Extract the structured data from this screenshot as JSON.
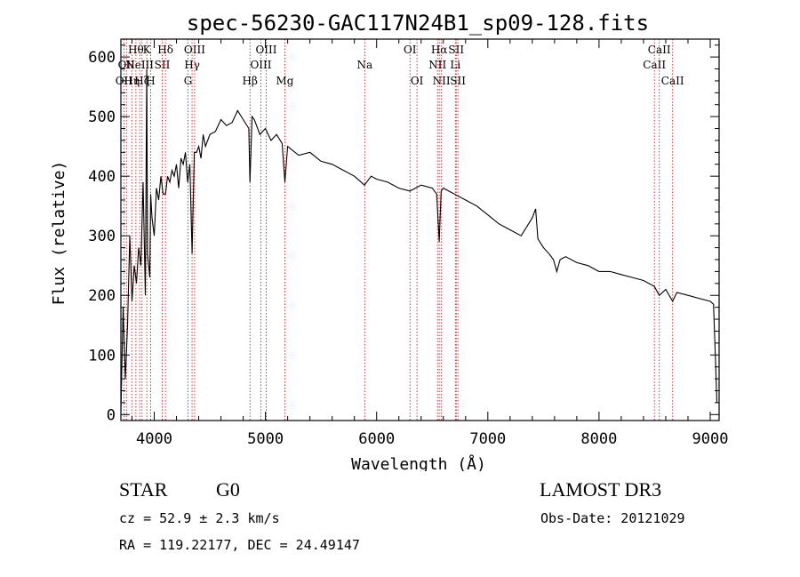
{
  "chart_data": {
    "type": "line",
    "title": "spec-56230-GAC117N24B1_sp09-128.fits",
    "xlabel": "Wavelength (Å)",
    "ylabel": "Flux (relative)",
    "xlim": [
      3700,
      9080
    ],
    "ylim": [
      -10,
      630
    ],
    "xticks": [
      4000,
      5000,
      6000,
      7000,
      8000,
      9000
    ],
    "yticks": [
      0,
      100,
      200,
      300,
      400,
      500,
      600
    ],
    "grid": false,
    "series": [
      {
        "name": "flux",
        "x": [
          3700,
          3720,
          3740,
          3760,
          3780,
          3800,
          3820,
          3840,
          3860,
          3880,
          3900,
          3920,
          3933,
          3940,
          3960,
          3968,
          3980,
          4000,
          4020,
          4040,
          4060,
          4080,
          4101,
          4120,
          4140,
          4160,
          4180,
          4200,
          4220,
          4240,
          4260,
          4280,
          4300,
          4320,
          4340,
          4360,
          4380,
          4400,
          4420,
          4440,
          4460,
          4480,
          4500,
          4550,
          4600,
          4650,
          4700,
          4750,
          4800,
          4850,
          4861,
          4880,
          4900,
          4950,
          5000,
          5050,
          5100,
          5150,
          5175,
          5200,
          5300,
          5400,
          5500,
          5600,
          5700,
          5800,
          5890,
          5950,
          6000,
          6100,
          6200,
          6300,
          6400,
          6500,
          6540,
          6563,
          6580,
          6600,
          6700,
          6800,
          6900,
          7000,
          7100,
          7200,
          7300,
          7400,
          7430,
          7450,
          7500,
          7550,
          7590,
          7620,
          7650,
          7700,
          7800,
          7900,
          8000,
          8100,
          8200,
          8300,
          8400,
          8498,
          8542,
          8600,
          8662,
          8700,
          8800,
          8900,
          9000,
          9030,
          9050,
          9060
        ],
        "values": [
          5,
          180,
          60,
          150,
          300,
          190,
          250,
          220,
          280,
          250,
          390,
          200,
          580,
          270,
          230,
          370,
          330,
          300,
          380,
          360,
          400,
          370,
          370,
          400,
          390,
          410,
          400,
          420,
          380,
          430,
          420,
          440,
          390,
          420,
          270,
          440,
          440,
          450,
          430,
          470,
          450,
          460,
          470,
          475,
          495,
          485,
          490,
          510,
          495,
          480,
          390,
          500,
          495,
          470,
          480,
          460,
          470,
          455,
          390,
          450,
          435,
          440,
          425,
          420,
          410,
          400,
          385,
          400,
          395,
          390,
          380,
          375,
          385,
          380,
          370,
          290,
          375,
          380,
          370,
          360,
          350,
          335,
          320,
          310,
          300,
          330,
          345,
          295,
          280,
          270,
          260,
          240,
          260,
          265,
          255,
          250,
          240,
          240,
          235,
          230,
          225,
          215,
          200,
          210,
          190,
          205,
          200,
          195,
          190,
          185,
          80,
          20
        ]
      }
    ],
    "line_annotations": [
      {
        "wavelength": 3727,
        "label": "OII",
        "row": 2
      },
      {
        "wavelength": 3750,
        "label": "OII",
        "row": 1
      },
      {
        "wavelength": 3798,
        "label": "Hη",
        "row": 2
      },
      {
        "wavelength": 3835,
        "label": "Hθ",
        "row": 0
      },
      {
        "wavelength": 3869,
        "label": "NeIII",
        "row": 1
      },
      {
        "wavelength": 3890,
        "label": "Hζ",
        "row": 2
      },
      {
        "wavelength": 3933,
        "label": "K",
        "row": 0
      },
      {
        "wavelength": 3968,
        "label": "H",
        "row": 2
      },
      {
        "wavelength": 4072,
        "label": "SII",
        "row": 1
      },
      {
        "wavelength": 4101,
        "label": "Hδ",
        "row": 0
      },
      {
        "wavelength": 4304,
        "label": "G",
        "row": 2
      },
      {
        "wavelength": 4340,
        "label": "Hγ",
        "row": 1
      },
      {
        "wavelength": 4363,
        "label": "OIII",
        "row": 0
      },
      {
        "wavelength": 4861,
        "label": "Hβ",
        "row": 2
      },
      {
        "wavelength": 4959,
        "label": "OIII",
        "row": 1
      },
      {
        "wavelength": 5007,
        "label": "OIII",
        "row": 0
      },
      {
        "wavelength": 5175,
        "label": "Mg",
        "row": 2
      },
      {
        "wavelength": 5893,
        "label": "Na",
        "row": 1
      },
      {
        "wavelength": 6300,
        "label": "OI",
        "row": 0
      },
      {
        "wavelength": 6363,
        "label": "OI",
        "row": 2
      },
      {
        "wavelength": 6548,
        "label": "NII",
        "row": 1
      },
      {
        "wavelength": 6563,
        "label": "Hα",
        "row": 0
      },
      {
        "wavelength": 6583,
        "label": "NII",
        "row": 2
      },
      {
        "wavelength": 6708,
        "label": "Li",
        "row": 1
      },
      {
        "wavelength": 6716,
        "label": "SII",
        "row": 0
      },
      {
        "wavelength": 6731,
        "label": "SII",
        "row": 2
      },
      {
        "wavelength": 8498,
        "label": "CaII",
        "row": 1
      },
      {
        "wavelength": 8542,
        "label": "CaII",
        "row": 0
      },
      {
        "wavelength": 8662,
        "label": "CaII",
        "row": 2
      }
    ]
  },
  "info": {
    "class": "STAR",
    "subclass": "G0",
    "survey": "LAMOST DR3",
    "cz": "cz = 52.9 ± 2.3 km/s",
    "obs_date": "Obs-Date: 20121029",
    "coords": "RA = 119.22177, DEC =  24.49147"
  },
  "colors": {
    "line_marker": "#cc2222",
    "spectrum": "#000000",
    "axes": "#000000"
  }
}
